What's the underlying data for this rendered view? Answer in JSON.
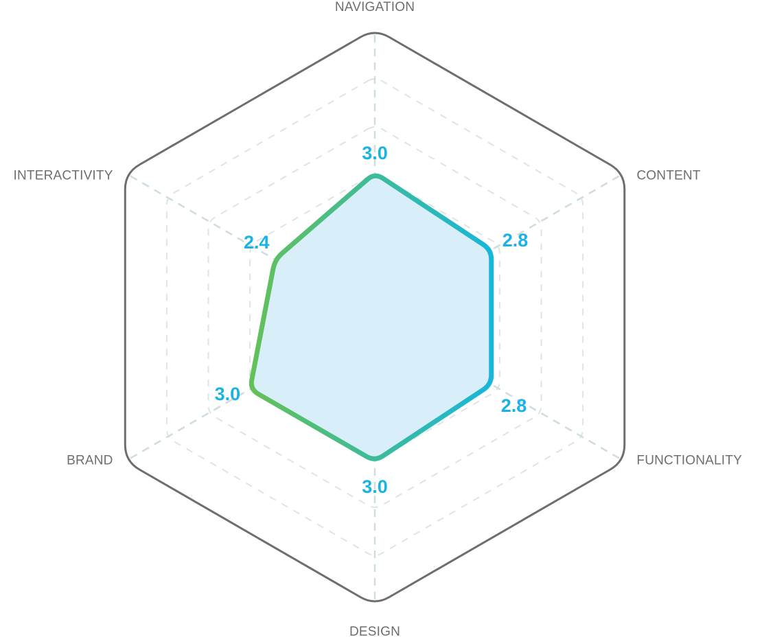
{
  "chart_data": {
    "type": "radar",
    "title": "",
    "axes": [
      "NAVIGATION",
      "CONTENT",
      "FUNCTIONALITY",
      "DESIGN",
      "BRAND",
      "INTERACTIVITY"
    ],
    "values": [
      3.0,
      2.8,
      2.8,
      3.0,
      3.0,
      2.4
    ],
    "value_labels": [
      "3.0",
      "2.8",
      "2.8",
      "3.0",
      "3.0",
      "2.4"
    ],
    "range": [
      0,
      6
    ],
    "grid_levels": [
      1,
      2,
      3,
      4,
      5
    ],
    "grid": true,
    "legend": "none",
    "colors": {
      "outline": "#6e6e6e",
      "grid": "#cfdedb",
      "fill": "#d8eef8",
      "stroke_start": "#6cc24a",
      "stroke_end": "#12b5e5",
      "value_text": "#1ab3e3",
      "axis_text": "#6e6e6e"
    }
  }
}
